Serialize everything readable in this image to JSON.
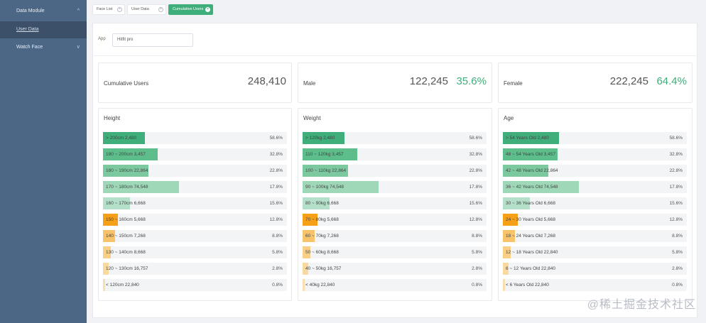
{
  "sidebar": {
    "items": [
      {
        "label": "Data Module",
        "chevron": "^"
      },
      {
        "label": "User Data"
      },
      {
        "label": "Watch Face",
        "chevron": "v"
      }
    ]
  },
  "tabs": [
    {
      "label": "Face List",
      "close": "×"
    },
    {
      "label": "User Data",
      "close": "×"
    },
    {
      "label": "Cumulative Users",
      "close": "×",
      "active": true
    }
  ],
  "filter": {
    "label": "App",
    "value": "Hitfit pro"
  },
  "stats": [
    {
      "label": "Cumulative Users",
      "value": "248,410",
      "pct": ""
    },
    {
      "label": "Male",
      "value": "122,245",
      "pct": "35.6%"
    },
    {
      "label": "Female",
      "value": "222,245",
      "pct": "64.4%"
    }
  ],
  "colors": {
    "green_dark": "#3fae7a",
    "green_mid": "#5dbd8b",
    "green_light": "#9fd8b9",
    "orange": "#f5a016",
    "orange_light": "#f7c46c",
    "orange_pale": "#f8d9a0"
  },
  "distributions": [
    {
      "title": "Height",
      "rows": [
        {
          "label": "> 200cm  2,480",
          "pct": "58.6%",
          "fill": 0.228,
          "color": "#3fae7a"
        },
        {
          "label": "190 ~ 200cm  3,457",
          "pct": "32.8%",
          "fill": 0.296,
          "color": "#5dbd8b"
        },
        {
          "label": "180 ~ 190cm  22,864",
          "pct": "22.8%",
          "fill": 0.249,
          "color": "#7cc9a0"
        },
        {
          "label": "170 ~ 180cm  74,548",
          "pct": "17.8%",
          "fill": 0.413,
          "color": "#9fd8b9"
        },
        {
          "label": "160 ~ 170cm  6,668",
          "pct": "15.6%",
          "fill": 0.148,
          "color": "#b4dfc8"
        },
        {
          "label": "150 ~ 160cm  5,668",
          "pct": "12.8%",
          "fill": 0.081,
          "color": "#f5a016"
        },
        {
          "label": "140 ~ 150cm  7,268",
          "pct": "8.8%",
          "fill": 0.066,
          "color": "#f7c46c"
        },
        {
          "label": "130 ~ 140cm  8,668",
          "pct": "5.8%",
          "fill": 0.043,
          "color": "#f8cf85"
        },
        {
          "label": "120 ~ 130cm  16,757",
          "pct": "2.8%",
          "fill": 0.031,
          "color": "#f8d9a0"
        },
        {
          "label": "< 120cm  22,840",
          "pct": "0.8%",
          "fill": 0.012,
          "color": "#f9dfb0"
        }
      ]
    },
    {
      "title": "Weight",
      "rows": [
        {
          "label": "> 120kg  2,480",
          "pct": "58.6%",
          "fill": 0.228,
          "color": "#3fae7a"
        },
        {
          "label": "110 ~ 120kg  3,457",
          "pct": "32.8%",
          "fill": 0.296,
          "color": "#5dbd8b"
        },
        {
          "label": "100 ~ 110kg  22,864",
          "pct": "22.8%",
          "fill": 0.249,
          "color": "#7cc9a0"
        },
        {
          "label": "90 ~ 100kg  74,548",
          "pct": "17.8%",
          "fill": 0.413,
          "color": "#9fd8b9"
        },
        {
          "label": "80 ~ 90kg  6,668",
          "pct": "15.6%",
          "fill": 0.148,
          "color": "#b4dfc8"
        },
        {
          "label": "70 ~ 80kg  5,668",
          "pct": "12.8%",
          "fill": 0.081,
          "color": "#f5a016"
        },
        {
          "label": "60 ~ 70kg  7,268",
          "pct": "8.8%",
          "fill": 0.066,
          "color": "#f7c46c"
        },
        {
          "label": "50 ~ 60kg  8,668",
          "pct": "5.8%",
          "fill": 0.043,
          "color": "#f8cf85"
        },
        {
          "label": "40 ~ 50kg  16,757",
          "pct": "2.8%",
          "fill": 0.031,
          "color": "#f8d9a0"
        },
        {
          "label": "< 40kg  22,840",
          "pct": "0.8%",
          "fill": 0.012,
          "color": "#f9dfb0"
        }
      ]
    },
    {
      "title": "Age",
      "rows": [
        {
          "label": "> 54 Years Old  2,480",
          "pct": "58.6%",
          "fill": 0.305,
          "color": "#3fae7a"
        },
        {
          "label": "48 ~ 54 Years Old  3,457",
          "pct": "32.8%",
          "fill": 0.296,
          "color": "#5dbd8b"
        },
        {
          "label": "42 ~ 48 Years Old  22,864",
          "pct": "22.8%",
          "fill": 0.249,
          "color": "#7cc9a0"
        },
        {
          "label": "36 ~ 42 Years Old  74,548",
          "pct": "17.8%",
          "fill": 0.413,
          "color": "#9fd8b9"
        },
        {
          "label": "30 ~ 36 Years Old  6,668",
          "pct": "15.6%",
          "fill": 0.148,
          "color": "#b4dfc8"
        },
        {
          "label": "24 ~ 30 Years Old  5,668",
          "pct": "12.8%",
          "fill": 0.081,
          "color": "#f5a016"
        },
        {
          "label": "18 ~ 24 Years Old  7,268",
          "pct": "8.8%",
          "fill": 0.066,
          "color": "#f7c46c"
        },
        {
          "label": "12 ~ 18 Years Old  22,840",
          "pct": "5.8%",
          "fill": 0.043,
          "color": "#f8cf85"
        },
        {
          "label": "6 ~ 12 Years Old  22,840",
          "pct": "2.8%",
          "fill": 0.031,
          "color": "#f8d9a0"
        },
        {
          "label": "< 6 Years Old  22,840",
          "pct": "0.8%",
          "fill": 0.012,
          "color": "#f9dfb0"
        }
      ]
    }
  ],
  "watermark": "@稀土掘金技术社区"
}
